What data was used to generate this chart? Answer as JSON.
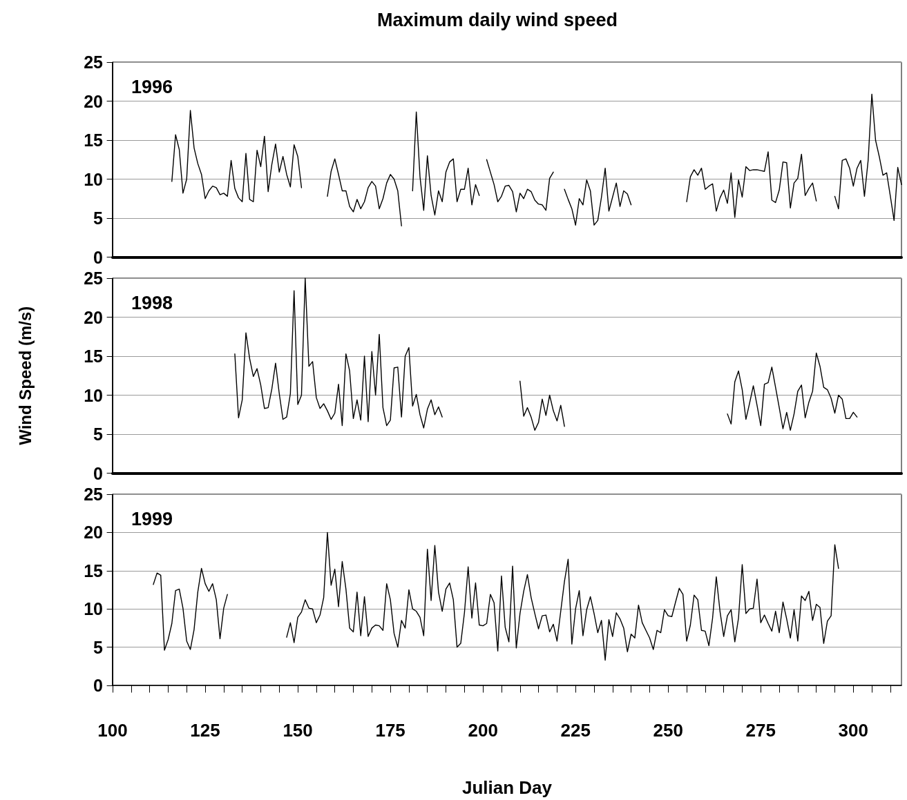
{
  "chart_data": [
    {
      "type": "line",
      "title": "Maximum daily wind speed",
      "annotations": [
        "1996"
      ],
      "color": "#000000",
      "marker": "none",
      "line_style": "solid",
      "grid": "y",
      "tick_labels": "y",
      "xlim": [
        100,
        313
      ],
      "ylim": [
        0,
        25
      ],
      "yticks": [
        0,
        5,
        10,
        15,
        20,
        25
      ],
      "x": [
        116,
        117,
        118,
        119,
        120,
        121,
        122,
        123,
        124,
        125,
        126,
        127,
        128,
        129,
        130,
        131,
        132,
        133,
        134,
        135,
        136,
        137,
        138,
        139,
        140,
        141,
        142,
        143,
        144,
        145,
        146,
        147,
        148,
        149,
        150,
        151,
        152,
        158,
        159,
        160,
        161,
        162,
        163,
        164,
        165,
        166,
        167,
        168,
        169,
        170,
        171,
        172,
        173,
        174,
        175,
        176,
        177,
        178,
        179,
        181,
        182,
        183,
        184,
        185,
        186,
        187,
        188,
        189,
        190,
        191,
        192,
        193,
        194,
        195,
        196,
        197,
        198,
        199,
        200,
        201,
        202,
        203,
        204,
        205,
        206,
        207,
        208,
        209,
        210,
        211,
        212,
        213,
        214,
        215,
        216,
        217,
        218,
        219,
        220,
        222,
        223,
        224,
        225,
        226,
        227,
        228,
        229,
        230,
        231,
        232,
        233,
        234,
        235,
        236,
        237,
        238,
        239,
        240,
        241,
        255,
        256,
        257,
        258,
        259,
        260,
        261,
        262,
        263,
        264,
        265,
        266,
        267,
        268,
        269,
        270,
        271,
        272,
        273,
        274,
        275,
        276,
        277,
        278,
        279,
        280,
        281,
        282,
        283,
        284,
        285,
        286,
        287,
        288,
        289,
        290,
        291,
        295,
        296,
        297,
        298,
        299,
        300,
        301,
        302,
        303,
        304,
        305,
        306,
        307,
        308,
        309,
        310,
        311,
        312,
        313
      ],
      "values": [
        9.7,
        15.7,
        13.8,
        8.2,
        10.0,
        18.8,
        14.0,
        12.0,
        10.6,
        7.5,
        8.5,
        9.1,
        8.9,
        8.0,
        8.2,
        7.8,
        12.4,
        8.8,
        7.6,
        7.1,
        13.3,
        7.4,
        7.1,
        13.7,
        11.6,
        15.5,
        8.4,
        11.9,
        14.5,
        10.9,
        12.9,
        10.6,
        9.0,
        14.4,
        12.9,
        8.9,
        null,
        7.8,
        11.0,
        12.6,
        10.6,
        8.5,
        8.5,
        6.5,
        5.8,
        7.4,
        6.2,
        7.1,
        8.9,
        9.7,
        9.1,
        6.2,
        7.5,
        9.5,
        10.6,
        10.0,
        8.5,
        4.0,
        null,
        8.5,
        18.6,
        10.3,
        6.0,
        13.0,
        7.9,
        5.4,
        8.5,
        7.1,
        10.9,
        12.2,
        12.6,
        7.1,
        8.7,
        8.7,
        11.4,
        6.7,
        9.3,
        7.9,
        null,
        12.5,
        10.9,
        9.3,
        7.1,
        7.8,
        9.1,
        9.2,
        8.4,
        5.8,
        8.2,
        7.5,
        8.7,
        8.4,
        7.3,
        6.8,
        6.7,
        6.0,
        10.1,
        10.9,
        null,
        8.7,
        7.4,
        6.2,
        4.1,
        7.5,
        6.7,
        9.9,
        8.5,
        4.1,
        4.7,
        7.7,
        11.4,
        5.9,
        7.7,
        9.5,
        6.5,
        8.5,
        8.1,
        6.7,
        null,
        7.1,
        10.3,
        11.2,
        10.5,
        11.4,
        8.7,
        9.1,
        9.4,
        5.9,
        7.6,
        8.6,
        6.9,
        10.8,
        5.1,
        9.9,
        7.7,
        11.6,
        11.1,
        11.2,
        11.2,
        11.1,
        11.0,
        13.5,
        7.3,
        7.0,
        8.6,
        12.2,
        12.1,
        6.3,
        9.5,
        10.1,
        13.2,
        7.9,
        8.8,
        9.5,
        7.2,
        null,
        7.8,
        6.2,
        12.4,
        12.6,
        11.4,
        9.1,
        11.4,
        12.4,
        7.8,
        12.4,
        20.9,
        15.0,
        12.9,
        10.5,
        10.8,
        7.8,
        4.7,
        11.5,
        9.3
      ]
    },
    {
      "type": "line",
      "ylabel": "Wind Speed (m/s)",
      "annotations": [
        "1998"
      ],
      "color": "#000000",
      "marker": "none",
      "line_style": "solid",
      "grid": "y",
      "tick_labels": "y",
      "xlim": [
        100,
        313
      ],
      "ylim": [
        0,
        25
      ],
      "yticks": [
        0,
        5,
        10,
        15,
        20,
        25
      ],
      "x": [
        133,
        134,
        135,
        136,
        137,
        138,
        139,
        140,
        141,
        142,
        143,
        144,
        145,
        146,
        147,
        148,
        149,
        150,
        151,
        152,
        153,
        154,
        155,
        156,
        157,
        158,
        159,
        160,
        161,
        162,
        163,
        164,
        165,
        166,
        167,
        168,
        169,
        170,
        171,
        172,
        173,
        174,
        175,
        176,
        177,
        178,
        179,
        180,
        181,
        182,
        183,
        184,
        185,
        186,
        187,
        188,
        189,
        190,
        210,
        211,
        212,
        213,
        214,
        215,
        216,
        217,
        218,
        219,
        220,
        221,
        222,
        223,
        266,
        267,
        268,
        269,
        270,
        271,
        272,
        273,
        274,
        275,
        276,
        277,
        278,
        279,
        280,
        281,
        282,
        283,
        284,
        285,
        286,
        287,
        288,
        289,
        290,
        291,
        292,
        293,
        294,
        295,
        296,
        297,
        298,
        299,
        300,
        301
      ],
      "values": [
        15.3,
        7.1,
        9.4,
        18.0,
        14.7,
        12.4,
        13.4,
        11.3,
        8.3,
        8.4,
        10.8,
        14.1,
        10.2,
        6.9,
        7.2,
        10.2,
        23.4,
        8.8,
        10.0,
        25,
        13.7,
        14.3,
        9.7,
        8.3,
        8.9,
        8.0,
        6.9,
        7.7,
        11.4,
        6.1,
        15.3,
        13.1,
        7.0,
        9.4,
        6.8,
        15.0,
        6.6,
        15.6,
        10.0,
        17.8,
        8.4,
        6.1,
        6.8,
        13.5,
        13.6,
        7.2,
        15.0,
        16.1,
        8.6,
        10.1,
        7.5,
        5.8,
        8.2,
        9.4,
        7.5,
        8.5,
        7.2,
        null,
        11.8,
        7.3,
        8.4,
        7.2,
        5.5,
        6.5,
        9.5,
        7.4,
        10.0,
        8.0,
        6.7,
        8.7,
        6.0,
        null,
        7.6,
        6.3,
        11.7,
        13.1,
        10.7,
        6.9,
        9.0,
        11.2,
        8.7,
        6.1,
        11.4,
        11.6,
        13.6,
        11.0,
        8.4,
        5.7,
        7.8,
        5.5,
        7.6,
        10.5,
        11.3,
        7.1,
        9.1,
        10.5,
        15.4,
        13.7,
        11.0,
        10.7,
        9.6,
        7.7,
        10.0,
        9.5,
        7.0,
        7.0,
        7.8,
        7.2
      ]
    },
    {
      "type": "line",
      "xlabel": "Julian Day",
      "annotations": [
        "1999"
      ],
      "color": "#000000",
      "marker": "none",
      "line_style": "solid",
      "grid": "y",
      "xlim": [
        100,
        313
      ],
      "ylim": [
        0,
        25
      ],
      "yticks": [
        0,
        5,
        10,
        15,
        20,
        25
      ],
      "xticks": [
        100,
        {
          "value": 105,
          "label": null
        },
        {
          "value": 110,
          "label": null
        },
        {
          "value": 115,
          "label": null
        },
        {
          "value": 120,
          "label": null
        },
        125,
        {
          "value": 130,
          "label": null
        },
        {
          "value": 135,
          "label": null
        },
        {
          "value": 140,
          "label": null
        },
        {
          "value": 145,
          "label": null
        },
        150,
        {
          "value": 155,
          "label": null
        },
        {
          "value": 160,
          "label": null
        },
        {
          "value": 165,
          "label": null
        },
        {
          "value": 170,
          "label": null
        },
        175,
        {
          "value": 180,
          "label": null
        },
        {
          "value": 185,
          "label": null
        },
        {
          "value": 190,
          "label": null
        },
        {
          "value": 195,
          "label": null
        },
        200,
        {
          "value": 205,
          "label": null
        },
        {
          "value": 210,
          "label": null
        },
        {
          "value": 215,
          "label": null
        },
        {
          "value": 220,
          "label": null
        },
        225,
        {
          "value": 230,
          "label": null
        },
        {
          "value": 235,
          "label": null
        },
        {
          "value": 240,
          "label": null
        },
        {
          "value": 245,
          "label": null
        },
        250,
        {
          "value": 255,
          "label": null
        },
        {
          "value": 260,
          "label": null
        },
        {
          "value": 265,
          "label": null
        },
        {
          "value": 270,
          "label": null
        },
        275,
        {
          "value": 280,
          "label": null
        },
        {
          "value": 285,
          "label": null
        },
        {
          "value": 290,
          "label": null
        },
        {
          "value": 295,
          "label": null
        },
        300,
        {
          "value": 305,
          "label": null
        },
        {
          "value": 310,
          "label": null
        }
      ],
      "x": [
        111,
        112,
        113,
        114,
        115,
        116,
        117,
        118,
        119,
        120,
        121,
        122,
        123,
        124,
        125,
        126,
        127,
        128,
        129,
        130,
        131,
        132,
        147,
        148,
        149,
        150,
        151,
        152,
        153,
        154,
        155,
        156,
        157,
        158,
        159,
        160,
        161,
        162,
        163,
        164,
        165,
        166,
        167,
        168,
        169,
        170,
        171,
        172,
        173,
        174,
        175,
        176,
        177,
        178,
        179,
        180,
        181,
        182,
        183,
        184,
        185,
        186,
        187,
        188,
        189,
        190,
        191,
        192,
        193,
        194,
        195,
        196,
        197,
        198,
        199,
        200,
        201,
        202,
        203,
        204,
        205,
        206,
        207,
        208,
        209,
        210,
        211,
        212,
        213,
        214,
        215,
        216,
        217,
        218,
        219,
        220,
        221,
        222,
        223,
        224,
        225,
        226,
        227,
        228,
        229,
        230,
        231,
        232,
        233,
        234,
        235,
        236,
        237,
        238,
        239,
        240,
        241,
        242,
        243,
        244,
        245,
        246,
        247,
        248,
        249,
        250,
        251,
        252,
        253,
        254,
        255,
        256,
        257,
        258,
        259,
        260,
        261,
        262,
        263,
        264,
        265,
        266,
        267,
        268,
        269,
        270,
        271,
        272,
        273,
        274,
        275,
        276,
        277,
        278,
        279,
        280,
        281,
        282,
        283,
        284,
        285,
        286,
        287,
        288,
        289,
        290,
        291,
        292,
        293,
        294,
        295,
        296
      ],
      "values": [
        13.2,
        14.7,
        14.4,
        4.6,
        6.0,
        8.1,
        12.4,
        12.6,
        10.1,
        5.8,
        4.7,
        7.3,
        12.2,
        15.3,
        13.3,
        12.3,
        13.3,
        11.2,
        6.1,
        10.1,
        11.9,
        null,
        6.3,
        8.2,
        5.6,
        8.9,
        9.6,
        11.2,
        10.1,
        10.0,
        8.2,
        9.2,
        11.5,
        20.0,
        13.1,
        15.2,
        10.3,
        16.2,
        12.6,
        7.5,
        7.0,
        12.2,
        6.5,
        11.6,
        6.4,
        7.5,
        7.9,
        7.8,
        7.2,
        13.3,
        11.2,
        6.8,
        5.0,
        8.5,
        7.5,
        12.5,
        10.0,
        9.7,
        8.9,
        6.5,
        17.8,
        11.1,
        18.3,
        12.2,
        9.7,
        12.6,
        13.4,
        11.2,
        5.0,
        5.5,
        9.5,
        15.5,
        8.8,
        13.4,
        7.9,
        7.8,
        8.1,
        11.9,
        10.8,
        4.5,
        14.3,
        7.6,
        5.7,
        15.6,
        4.9,
        9.4,
        12.3,
        14.5,
        11.5,
        9.4,
        7.4,
        9.1,
        9.2,
        7.0,
        8.0,
        5.8,
        9.7,
        13.6,
        16.5,
        5.4,
        10.0,
        12.4,
        6.5,
        9.9,
        11.6,
        9.4,
        6.9,
        8.5,
        3.3,
        8.6,
        6.4,
        9.5,
        8.7,
        7.5,
        4.4,
        6.7,
        6.2,
        10.5,
        8.2,
        7.2,
        6.2,
        4.7,
        7.2,
        6.9,
        9.9,
        9.1,
        9.0,
        10.9,
        12.7,
        11.9,
        5.8,
        7.9,
        11.8,
        11.2,
        7.2,
        7.1,
        5.2,
        8.8,
        14.2,
        9.7,
        6.4,
        9.1,
        9.9,
        5.7,
        8.8,
        15.8,
        9.4,
        10.0,
        10.1,
        13.9,
        8.2,
        9.2,
        8.1,
        7.1,
        9.7,
        6.9,
        10.9,
        8.7,
        6.2,
        9.9,
        5.8,
        11.7,
        11.1,
        12.3,
        8.5,
        10.6,
        10.2,
        5.5,
        8.4,
        9.1,
        18.4,
        15.3
      ]
    }
  ]
}
